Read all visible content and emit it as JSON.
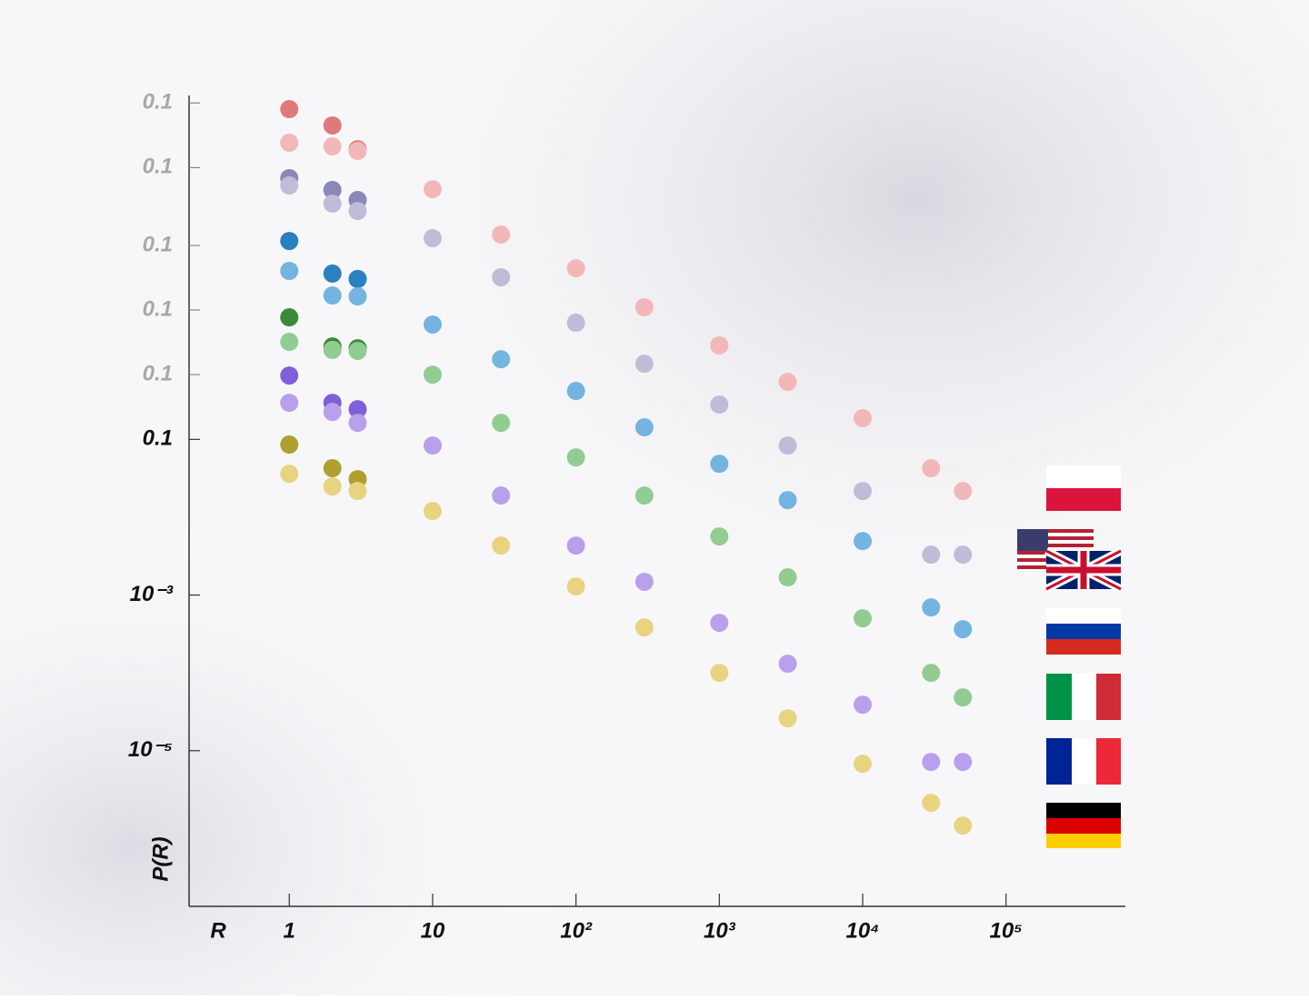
{
  "chart_data": {
    "type": "scatter",
    "xscale": "log",
    "yscale": "log",
    "x_label": "R",
    "y_label": "P(R)",
    "xlim": [
      0.2,
      680000
    ],
    "ylim": [
      1e-07,
      3000
    ],
    "xticks": [
      1,
      10,
      {
        "value": 100,
        "label": "10²"
      },
      {
        "value": 1000,
        "label": "10³"
      },
      {
        "value": 10000,
        "label": "10⁴"
      },
      {
        "value": 100000,
        "label": "10⁵"
      }
    ],
    "yticks": [
      {
        "value": 0.1,
        "label": "0.1"
      },
      {
        "value": 0.001,
        "label": "10⁻³"
      },
      {
        "value": 1e-05,
        "label": "10⁻⁵"
      }
    ],
    "offset_yticks": [
      {
        "value": 0.68,
        "label": "0.1"
      },
      {
        "value": 4.6,
        "label": "0.1"
      },
      {
        "value": 31,
        "label": "0.1"
      },
      {
        "value": 310,
        "label": "0.1"
      },
      {
        "value": 2100,
        "label": "0.1"
      }
    ],
    "series": [
      {
        "color": "#e07a7a",
        "x": [
          1,
          2,
          3
        ],
        "values": [
          1750,
          1080,
          535
        ]
      },
      {
        "color": "#8a88b8",
        "x": [
          1,
          2,
          3
        ],
        "values": [
          227,
          160,
          119
        ]
      },
      {
        "color": "#2a80c0",
        "x": [
          1,
          2,
          3
        ],
        "values": [
          35.4,
          13.5,
          11.5
        ]
      },
      {
        "color": "#3a8a3a",
        "x": [
          1,
          2,
          3
        ],
        "values": [
          3.7,
          1.56,
          1.48
        ]
      },
      {
        "color": "#8060d8",
        "x": [
          1,
          2,
          3
        ],
        "values": [
          0.661,
          0.295,
          0.244
        ]
      },
      {
        "color": "#b0a030",
        "x": [
          1,
          2,
          3
        ],
        "values": [
          0.0857,
          0.0426,
          0.0308
        ]
      },
      {
        "color": "#f2b8b8",
        "x": [
          1,
          2,
          3,
          10,
          30,
          100,
          300,
          1000,
          3000,
          10000,
          30000,
          50000
        ],
        "values": [
          647,
          581,
          508,
          164,
          42.8,
          15.8,
          4.98,
          1.61,
          0.548,
          0.187,
          0.0426,
          0.0217
        ]
      },
      {
        "color": "#c0bcd8",
        "x": [
          1,
          2,
          3,
          10,
          30,
          100,
          300,
          1000,
          3000,
          10000,
          30000,
          50000
        ],
        "values": [
          183,
          107,
          86,
          38.4,
          12.1,
          3.15,
          0.938,
          0.28,
          0.0834,
          0.0217,
          0.0033,
          0.0033
        ]
      },
      {
        "color": "#74b4e0",
        "x": [
          1,
          2,
          3,
          10,
          30,
          100,
          300,
          1000,
          3000,
          10000,
          30000,
          50000
        ],
        "values": [
          14.6,
          7.06,
          6.87,
          2.99,
          1.07,
          0.419,
          0.143,
          0.0486,
          0.0166,
          0.00494,
          0.000693,
          0.000364
        ]
      },
      {
        "color": "#92cc92",
        "x": [
          1,
          2,
          3,
          10,
          30,
          100,
          300,
          1000,
          3000,
          10000,
          30000,
          50000
        ],
        "values": [
          1.79,
          1.41,
          1.37,
          0.679,
          0.163,
          0.0587,
          0.019,
          0.00566,
          0.00169,
          0.000502,
          0.0001,
          4.84e-05
        ]
      },
      {
        "color": "#b8a0ec",
        "x": [
          1,
          2,
          3,
          10,
          30,
          100,
          300,
          1000,
          3000,
          10000,
          30000,
          50000
        ],
        "values": [
          0.295,
          0.225,
          0.163,
          0.0834,
          0.019,
          0.00432,
          0.00148,
          0.00044,
          0.000131,
          3.9e-05,
          7.18e-06,
          7.18e-06
        ]
      },
      {
        "color": "#e8d480",
        "x": [
          1,
          2,
          3,
          10,
          30,
          100,
          300,
          1000,
          3000,
          10000,
          30000,
          50000
        ],
        "values": [
          0.0362,
          0.0248,
          0.0217,
          0.012,
          0.00432,
          0.00129,
          0.000384,
          0.0001,
          2.61e-05,
          6.79e-06,
          2.14e-06,
          1.09e-06
        ]
      }
    ]
  }
}
